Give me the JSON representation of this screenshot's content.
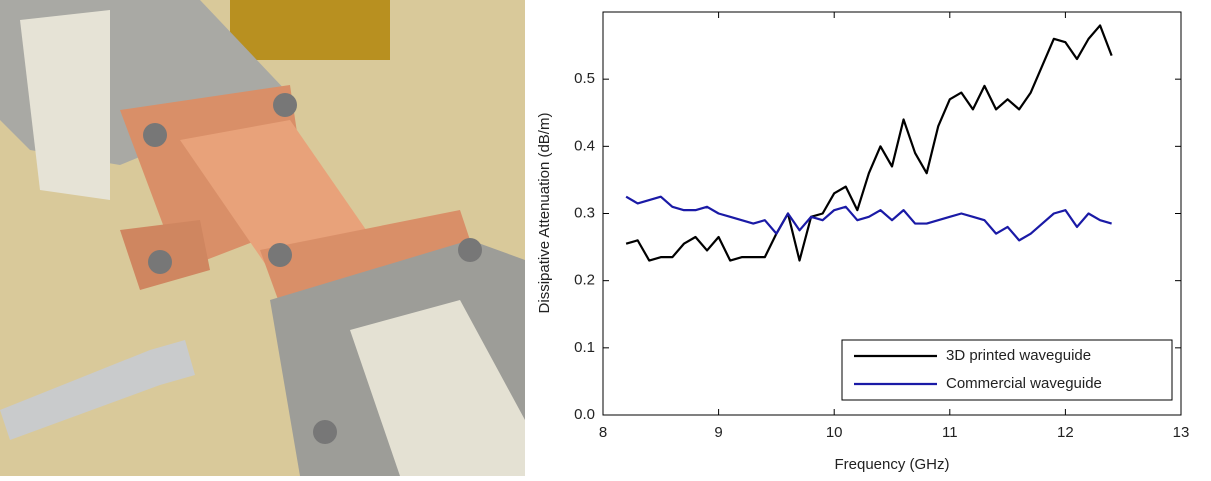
{
  "chart_data": {
    "type": "line",
    "x_label": "Frequency (GHz)",
    "y_label": "Dissipative Attenuation (dB/m)",
    "x": [
      8.2,
      8.3,
      8.4,
      8.5,
      8.6,
      8.7,
      8.8,
      8.9,
      9.0,
      9.1,
      9.2,
      9.3,
      9.4,
      9.5,
      9.6,
      9.7,
      9.8,
      9.9,
      10.0,
      10.1,
      10.2,
      10.3,
      10.4,
      10.5,
      10.6,
      10.7,
      10.8,
      10.9,
      11.0,
      11.1,
      11.2,
      11.3,
      11.4,
      11.5,
      11.6,
      11.7,
      11.8,
      11.9,
      12.0,
      12.1,
      12.2,
      12.3,
      12.4
    ],
    "series": [
      {
        "name": "3D printed waveguide",
        "color": "#000000",
        "values": [
          0.255,
          0.26,
          0.23,
          0.235,
          0.235,
          0.255,
          0.265,
          0.245,
          0.265,
          0.23,
          0.235,
          0.235,
          0.235,
          0.27,
          0.3,
          0.23,
          0.295,
          0.3,
          0.33,
          0.34,
          0.305,
          0.36,
          0.4,
          0.37,
          0.44,
          0.39,
          0.36,
          0.43,
          0.47,
          0.48,
          0.455,
          0.49,
          0.455,
          0.47,
          0.455,
          0.48,
          0.52,
          0.56,
          0.555,
          0.53,
          0.56,
          0.58,
          0.535
        ]
      },
      {
        "name": "Commercial waveguide",
        "color": "#1a1aa6",
        "values": [
          0.325,
          0.315,
          0.32,
          0.325,
          0.31,
          0.305,
          0.305,
          0.31,
          0.3,
          0.295,
          0.29,
          0.285,
          0.29,
          0.27,
          0.3,
          0.275,
          0.295,
          0.29,
          0.305,
          0.31,
          0.29,
          0.295,
          0.305,
          0.29,
          0.305,
          0.285,
          0.285,
          0.29,
          0.295,
          0.3,
          0.295,
          0.29,
          0.27,
          0.28,
          0.26,
          0.27,
          0.285,
          0.3,
          0.305,
          0.28,
          0.3,
          0.29,
          0.285
        ]
      }
    ],
    "xlim": [
      8,
      13
    ],
    "xticks": [
      8,
      9,
      10,
      11,
      12,
      13
    ],
    "ylim": [
      0,
      0.6
    ],
    "yticks": [
      {
        "value": 0,
        "label": "0.0"
      },
      0.1,
      0.2,
      0.3,
      0.4,
      0.5
    ],
    "grid": false,
    "legend": "lower-right"
  }
}
